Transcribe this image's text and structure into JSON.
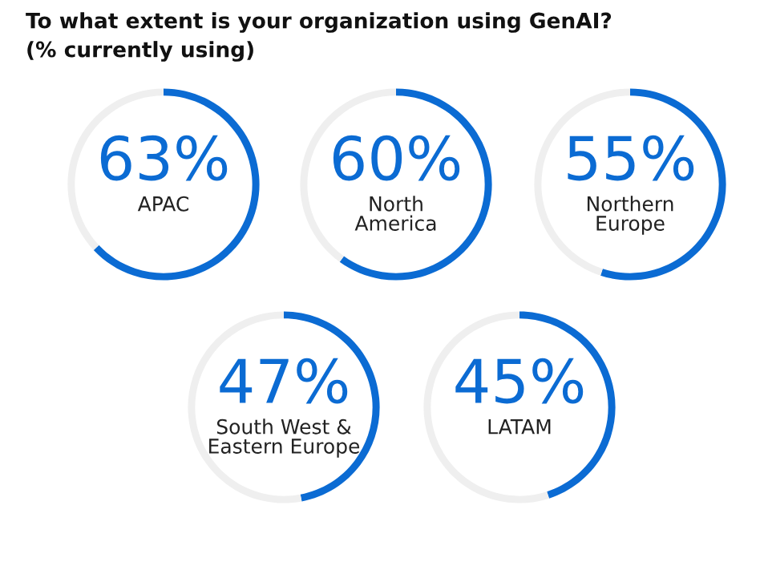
{
  "chart_data": [
    {
      "type": "donut",
      "title": "To what extent is your organization using GenAI?",
      "subtitle": "(% currently using)",
      "categories": [
        "APAC",
        null
      ],
      "values": [
        63,
        37
      ],
      "colors": [
        "#0b6bd3",
        "#efefef"
      ],
      "value_labels": [
        "63%",
        null
      ]
    },
    {
      "type": "donut",
      "categories": [
        "North\nAmerica",
        null
      ],
      "values": [
        60,
        40
      ],
      "colors": [
        "#0b6bd3",
        "#efefef"
      ],
      "value_labels": [
        "60%",
        null
      ]
    },
    {
      "type": "donut",
      "categories": [
        "Northern\nEurope",
        null
      ],
      "values": [
        55,
        45
      ],
      "colors": [
        "#0b6bd3",
        "#efefef"
      ],
      "value_labels": [
        "55%",
        null
      ]
    },
    {
      "type": "donut",
      "categories": [
        "South West &\nEastern Europe",
        null
      ],
      "values": [
        47,
        53
      ],
      "colors": [
        "#0b6bd3",
        "#efefef"
      ],
      "value_labels": [
        "47%",
        null
      ]
    },
    {
      "type": "donut",
      "categories": [
        "LATAM",
        null
      ],
      "values": [
        45,
        55
      ],
      "colors": [
        "#0b6bd3",
        "#efefef"
      ],
      "value_labels": [
        "45%",
        null
      ]
    }
  ]
}
